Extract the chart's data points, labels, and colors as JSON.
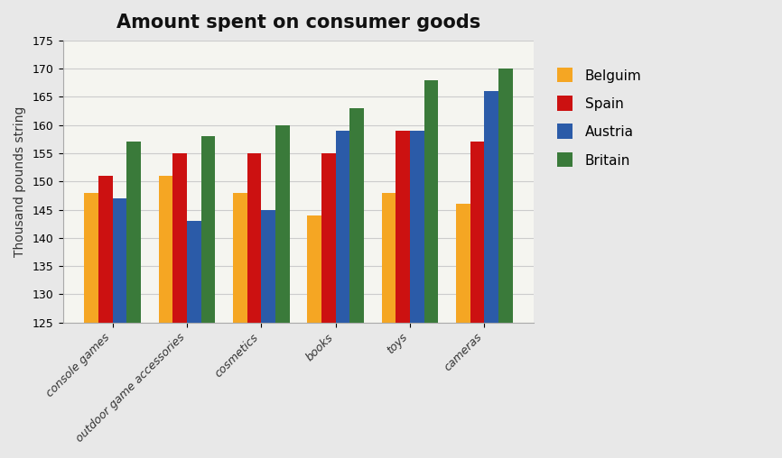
{
  "title": "Amount spent on consumer goods",
  "ylabel": "Thousand pounds string",
  "categories": [
    "console games",
    "outdoor game accessories",
    "cosmetics",
    "books",
    "toys",
    "cameras"
  ],
  "series": {
    "Belguim": [
      148,
      151,
      148,
      144,
      148,
      146
    ],
    "Spain": [
      151,
      155,
      155,
      155,
      159,
      157
    ],
    "Austria": [
      147,
      143,
      145,
      159,
      159,
      166
    ],
    "Britain": [
      157,
      158,
      160,
      163,
      168,
      170
    ]
  },
  "colors": {
    "Belguim": "#F5A623",
    "Spain": "#CC1111",
    "Austria": "#2B5BA8",
    "Britain": "#3A7A3A"
  },
  "ylim": [
    125,
    175
  ],
  "yticks": [
    125,
    130,
    135,
    140,
    145,
    150,
    155,
    160,
    165,
    170,
    175
  ],
  "bar_width": 0.19,
  "figure_bg": "#E8E8E8",
  "plot_bg": "#F5F5F0",
  "title_fontsize": 15,
  "axis_fontsize": 10,
  "tick_fontsize": 9,
  "legend_fontsize": 11
}
